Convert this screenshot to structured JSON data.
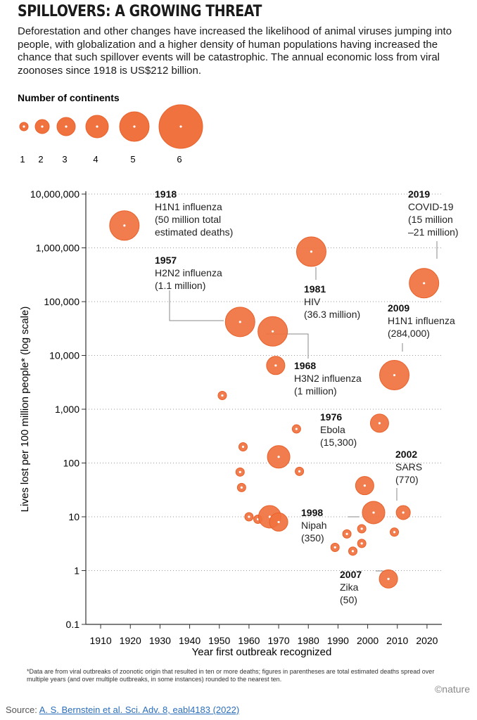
{
  "header": {
    "title": "SPILLOVERS: A GROWING THREAT",
    "subtitle": "Deforestation and other changes have increased the likelihood of animal viruses jumping into people, with globalization and a higher density of human populations having increased the chance that such spillover events will be catastrophic. The annual economic loss from viral zoonoses since 1918 is US$212 billion."
  },
  "size_legend": {
    "title": "Number of continents",
    "items": [
      "1",
      "2",
      "3",
      "4",
      "5",
      "6"
    ]
  },
  "colors": {
    "bubble": "#f0723f",
    "bubble_edge": "#e8612b",
    "axis": "#333333",
    "dot": "#ffffff"
  },
  "chart_data": {
    "type": "scatter",
    "xlabel": "Year first outbreak recognized",
    "ylabel": "Lives lost per 100 million people* (log scale)",
    "xlim": [
      1905,
      2020
    ],
    "ylim": [
      0.1,
      10000000
    ],
    "log_y": true,
    "xticks": [
      "1910",
      "1920",
      "1930",
      "1940",
      "1950",
      "1960",
      "1970",
      "1980",
      "1990",
      "2000",
      "2010",
      "2020"
    ],
    "yticks": [
      "10,000,000",
      "1,000,000",
      "100,000",
      "10,000",
      "1,000",
      "100",
      "10",
      "1",
      "0.1"
    ],
    "size_encoding": "Number of continents",
    "points": [
      {
        "x": 1918,
        "y": 2600000,
        "continents": 5
      },
      {
        "x": 1957,
        "y": 42000,
        "continents": 5
      },
      {
        "x": 1968,
        "y": 28000,
        "continents": 5
      },
      {
        "x": 1981,
        "y": 850000,
        "continents": 5
      },
      {
        "x": 2009,
        "y": 4300,
        "continents": 5
      },
      {
        "x": 2019,
        "y": 220000,
        "continents": 5
      },
      {
        "x": 1969,
        "y": 6500,
        "continents": 3
      },
      {
        "x": 1951,
        "y": 1800,
        "continents": 1
      },
      {
        "x": 1976,
        "y": 430,
        "continents": 1
      },
      {
        "x": 2004,
        "y": 550,
        "continents": 3
      },
      {
        "x": 1958,
        "y": 200,
        "continents": 1
      },
      {
        "x": 1970,
        "y": 130,
        "continents": 4
      },
      {
        "x": 1957,
        "y": 68,
        "continents": 1
      },
      {
        "x": 1957.5,
        "y": 35,
        "continents": 1
      },
      {
        "x": 1977,
        "y": 70,
        "continents": 1
      },
      {
        "x": 1999,
        "y": 38,
        "continents": 3
      },
      {
        "x": 2002,
        "y": 12,
        "continents": 4
      },
      {
        "x": 2012,
        "y": 12,
        "continents": 2
      },
      {
        "x": 1960,
        "y": 10,
        "continents": 1
      },
      {
        "x": 1963,
        "y": 9,
        "continents": 1
      },
      {
        "x": 1967,
        "y": 10,
        "continents": 4
      },
      {
        "x": 1970,
        "y": 8,
        "continents": 3
      },
      {
        "x": 1998,
        "y": 6,
        "continents": 1
      },
      {
        "x": 1993,
        "y": 4.8,
        "continents": 1
      },
      {
        "x": 1989,
        "y": 2.7,
        "continents": 1
      },
      {
        "x": 1995,
        "y": 2.3,
        "continents": 1
      },
      {
        "x": 1998,
        "y": 3.2,
        "continents": 1
      },
      {
        "x": 2009,
        "y": 5.2,
        "continents": 1
      },
      {
        "x": 2007,
        "y": 0.7,
        "continents": 3
      }
    ],
    "annotations": [
      {
        "year": "1918",
        "lines": [
          "H1N1 influenza",
          "(50 million total",
          "estimated deaths)"
        ],
        "x": 1918,
        "y": 2600000
      },
      {
        "year": "1957",
        "lines": [
          "H2N2 influenza",
          "(1.1 million)"
        ],
        "x": 1957,
        "y": 42000
      },
      {
        "year": "1968",
        "lines": [
          "H3N2 influenza",
          "(1 million)"
        ],
        "x": 1968,
        "y": 28000
      },
      {
        "year": "1981",
        "lines": [
          "HIV",
          "(36.3 million)"
        ],
        "x": 1981,
        "y": 850000
      },
      {
        "year": "2009",
        "lines": [
          "H1N1 influenza",
          "(284,000)"
        ],
        "x": 2009,
        "y": 4300
      },
      {
        "year": "2019",
        "lines": [
          "COVID-19",
          "(15 million",
          "–21 million)"
        ],
        "x": 2019,
        "y": 220000
      },
      {
        "year": "1976",
        "lines": [
          "Ebola",
          "(15,300)"
        ],
        "x": 1976,
        "y": 430
      },
      {
        "year": "2002",
        "lines": [
          "SARS",
          "(770)"
        ],
        "x": 2002,
        "y": 12
      },
      {
        "year": "1998",
        "lines": [
          "Nipah",
          "(350)"
        ],
        "x": 1998,
        "y": 6
      },
      {
        "year": "2007",
        "lines": [
          "Zika",
          "(50)"
        ],
        "x": 2007,
        "y": 0.7
      }
    ],
    "footnote": "*Data are from viral outbreaks of zoonotic origin that resulted in ten or more deaths; figures in parentheses are total estimated deaths spread over multiple years (and over multiple outbreaks, in some instances) rounded to the nearest ten.",
    "credit": "©nature"
  },
  "source": {
    "label": "Source: ",
    "citation": "A. S. Bernstein et al. Sci. Adv. 8, eabl4183 (2022)"
  }
}
